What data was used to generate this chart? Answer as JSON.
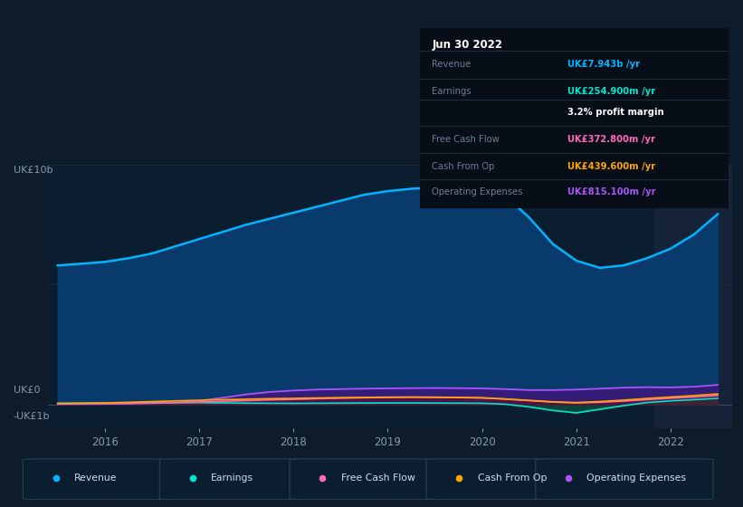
{
  "bg_color": "#0d1b2a",
  "plot_bg_color": "#0b1e30",
  "plot_bg_highlight": "#152238",
  "title_date": "Jun 30 2022",
  "ylabel_top": "UK£10b",
  "ylabel_zero": "UK£0",
  "ylabel_neg": "-UK£1b",
  "ylim_min": -1000000000,
  "ylim_max": 10000000000,
  "legend": [
    {
      "label": "Revenue",
      "color": "#00b4ff"
    },
    {
      "label": "Earnings",
      "color": "#00e5cc"
    },
    {
      "label": "Free Cash Flow",
      "color": "#ff69b4"
    },
    {
      "label": "Cash From Op",
      "color": "#ffa500"
    },
    {
      "label": "Operating Expenses",
      "color": "#a855f7"
    }
  ],
  "x_years": [
    2015.5,
    2015.75,
    2016.0,
    2016.25,
    2016.5,
    2016.75,
    2017.0,
    2017.25,
    2017.5,
    2017.75,
    2018.0,
    2018.25,
    2018.5,
    2018.75,
    2019.0,
    2019.25,
    2019.5,
    2019.75,
    2020.0,
    2020.25,
    2020.5,
    2020.75,
    2021.0,
    2021.25,
    2021.5,
    2021.75,
    2022.0,
    2022.25,
    2022.5
  ],
  "revenue": [
    5800000000,
    5870000000,
    5950000000,
    6100000000,
    6300000000,
    6600000000,
    6900000000,
    7200000000,
    7500000000,
    7750000000,
    8000000000,
    8250000000,
    8500000000,
    8750000000,
    8900000000,
    9000000000,
    9050000000,
    9100000000,
    9100000000,
    8700000000,
    7800000000,
    6700000000,
    6000000000,
    5700000000,
    5800000000,
    6100000000,
    6500000000,
    7100000000,
    7943000000
  ],
  "earnings": [
    50000000,
    55000000,
    60000000,
    65000000,
    70000000,
    75000000,
    75000000,
    65000000,
    55000000,
    50000000,
    45000000,
    50000000,
    55000000,
    60000000,
    60000000,
    62000000,
    58000000,
    55000000,
    50000000,
    10000000,
    -100000000,
    -250000000,
    -350000000,
    -200000000,
    -50000000,
    80000000,
    150000000,
    200000000,
    254900000
  ],
  "free_cash_flow": [
    30000000,
    35000000,
    40000000,
    50000000,
    65000000,
    80000000,
    100000000,
    130000000,
    160000000,
    190000000,
    210000000,
    240000000,
    260000000,
    280000000,
    290000000,
    300000000,
    295000000,
    285000000,
    270000000,
    220000000,
    160000000,
    100000000,
    60000000,
    90000000,
    140000000,
    200000000,
    260000000,
    310000000,
    372800000
  ],
  "cash_from_op": [
    40000000,
    50000000,
    65000000,
    90000000,
    120000000,
    150000000,
    175000000,
    200000000,
    220000000,
    240000000,
    255000000,
    270000000,
    285000000,
    295000000,
    305000000,
    310000000,
    305000000,
    295000000,
    280000000,
    230000000,
    170000000,
    110000000,
    80000000,
    120000000,
    180000000,
    250000000,
    310000000,
    370000000,
    439600000
  ],
  "operating_expenses": [
    10000000,
    15000000,
    20000000,
    30000000,
    50000000,
    80000000,
    150000000,
    280000000,
    420000000,
    520000000,
    580000000,
    620000000,
    640000000,
    660000000,
    670000000,
    680000000,
    685000000,
    680000000,
    670000000,
    640000000,
    600000000,
    600000000,
    620000000,
    660000000,
    700000000,
    720000000,
    710000000,
    740000000,
    815100000
  ],
  "highlight_start": 2021.83,
  "x_tick_years": [
    2016,
    2017,
    2018,
    2019,
    2020,
    2021,
    2022
  ],
  "info_rows": [
    {
      "label": "Revenue",
      "value": "UK£7.943b /yr",
      "color": "#00b4ff",
      "indent": false
    },
    {
      "label": "Earnings",
      "value": "UK£254.900m /yr",
      "color": "#00e5cc",
      "indent": false
    },
    {
      "label": "",
      "value": "3.2% profit margin",
      "color": "#ffffff",
      "indent": true
    },
    {
      "label": "Free Cash Flow",
      "value": "UK£372.800m /yr",
      "color": "#ff69b4",
      "indent": false
    },
    {
      "label": "Cash From Op",
      "value": "UK£439.600m /yr",
      "color": "#ffa500",
      "indent": false
    },
    {
      "label": "Operating Expenses",
      "value": "UK£815.100m /yr",
      "color": "#a855f7",
      "indent": false
    }
  ]
}
